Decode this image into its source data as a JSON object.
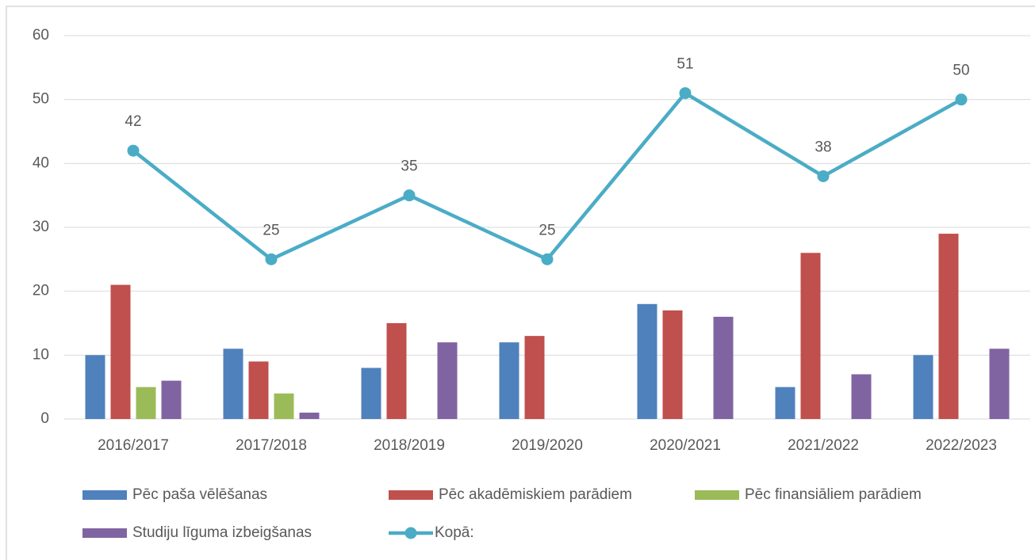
{
  "chart_data": {
    "type": "bar_line",
    "categories": [
      "2016/2017",
      "2017/2018",
      "2018/2019",
      "2019/2020",
      "2020/2021",
      "2021/2022",
      "2022/2023"
    ],
    "series": [
      {
        "name": "Pēc paša vēlēšanas",
        "type": "bar",
        "color": "#4f81bd",
        "values": [
          10,
          11,
          8,
          12,
          18,
          5,
          10
        ]
      },
      {
        "name": "Pēc akadēmiskiem parādiem",
        "type": "bar",
        "color": "#c0504d",
        "values": [
          21,
          9,
          15,
          13,
          17,
          26,
          29
        ]
      },
      {
        "name": "Pēc finansiāliem parādiem",
        "type": "bar",
        "color": "#9bbb59",
        "values": [
          5,
          4,
          null,
          null,
          null,
          null,
          null
        ]
      },
      {
        "name": "Studiju līguma izbeigšanas",
        "type": "bar",
        "color": "#8064a2",
        "values": [
          6,
          1,
          12,
          null,
          16,
          7,
          11
        ]
      },
      {
        "name": "Kopā:",
        "type": "line",
        "color": "#4bacc6",
        "values": [
          42,
          25,
          35,
          25,
          51,
          38,
          50
        ]
      }
    ],
    "ylim": [
      0,
      60
    ],
    "yticks": [
      0,
      10,
      20,
      30,
      40,
      50,
      60
    ],
    "grid": true,
    "legend": "bottom"
  }
}
